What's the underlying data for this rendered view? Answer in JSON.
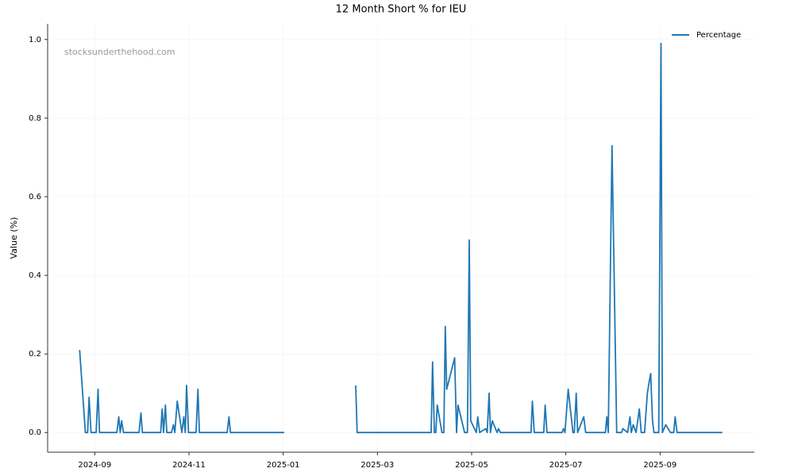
{
  "chart_data": {
    "type": "line",
    "title": "12 Month Short % for IEU",
    "ylabel": "Value (%)",
    "watermark": "stocksunderthehood.com",
    "legend": "upper right",
    "grid": true,
    "xlim": [
      7.0,
      22.0
    ],
    "xticks": [
      {
        "value": 8,
        "label": "2024-09"
      },
      {
        "value": 10,
        "label": "2024-11"
      },
      {
        "value": 12,
        "label": "2025-01"
      },
      {
        "value": 14,
        "label": "2025-03"
      },
      {
        "value": 16,
        "label": "2025-05"
      },
      {
        "value": 18,
        "label": "2025-07"
      },
      {
        "value": 20,
        "label": "2025-09"
      }
    ],
    "ylim": [
      -0.05,
      1.04
    ],
    "yticks": [
      {
        "value": 0,
        "label": "0.0"
      },
      0.2,
      0.4,
      0.6,
      0.8,
      {
        "value": 1,
        "label": "1.0"
      }
    ],
    "series": [
      {
        "name": "Percentage",
        "color": "#1f77b4",
        "x": [
          7.68,
          7.8,
          7.85,
          7.88,
          7.92,
          8.03,
          8.07,
          8.1,
          8.47,
          8.51,
          8.54,
          8.57,
          8.61,
          8.94,
          8.98,
          9.01,
          9.4,
          9.43,
          9.46,
          9.5,
          9.53,
          9.63,
          9.67,
          9.7,
          9.75,
          9.85,
          9.89,
          9.92,
          9.95,
          9.99,
          10.15,
          10.19,
          10.22,
          10.81,
          10.85,
          10.88,
          12.02,
          12.8,
          13.54,
          13.57,
          15.14,
          15.17,
          15.21,
          15.24,
          15.27,
          15.37,
          15.41,
          15.44,
          15.47,
          15.64,
          15.68,
          15.71,
          15.85,
          15.91,
          15.95,
          15.98,
          16.1,
          16.13,
          16.17,
          16.3,
          16.33,
          16.37,
          16.4,
          16.44,
          16.54,
          16.57,
          16.61,
          17.26,
          17.29,
          17.33,
          17.53,
          17.56,
          17.6,
          17.92,
          17.95,
          17.98,
          18.05,
          18.15,
          18.18,
          18.22,
          18.25,
          18.38,
          18.42,
          18.84,
          18.87,
          18.9,
          18.98,
          19.08,
          19.18,
          19.21,
          19.31,
          19.36,
          19.39,
          19.43,
          19.49,
          19.56,
          19.6,
          19.67,
          19.73,
          19.77,
          19.8,
          19.84,
          19.87,
          19.97,
          20.02,
          20.05,
          20.12,
          20.22,
          20.29,
          20.32,
          20.36,
          21.32
        ],
        "values": [
          0.21,
          0,
          0,
          0.09,
          0,
          0,
          0.11,
          0,
          0,
          0.04,
          0,
          0.03,
          0,
          0,
          0.05,
          0,
          0,
          0.06,
          0,
          0.07,
          0,
          0,
          0.02,
          0,
          0.08,
          0,
          0.04,
          0,
          0.12,
          0,
          0,
          0.11,
          0,
          0,
          0.04,
          0,
          0,
          null,
          0.12,
          0,
          0,
          0.18,
          0,
          0,
          0.07,
          0,
          0,
          0.27,
          0.11,
          0.19,
          0,
          0.07,
          0,
          0,
          0.49,
          0.03,
          0,
          0.04,
          0,
          0.01,
          0,
          0.1,
          0,
          0.03,
          0,
          0.01,
          0,
          0,
          0.08,
          0,
          0,
          0.07,
          0,
          0,
          0.01,
          0,
          0.11,
          0,
          0,
          0.1,
          0,
          0.04,
          0,
          0,
          0.04,
          0,
          0.73,
          0,
          0,
          0.01,
          0,
          0.04,
          0,
          0.02,
          0,
          0.06,
          0,
          0,
          0.1,
          0.13,
          0.15,
          0.03,
          0,
          0,
          0.99,
          0,
          0.02,
          0,
          0,
          0.04,
          0,
          0
        ]
      }
    ]
  }
}
